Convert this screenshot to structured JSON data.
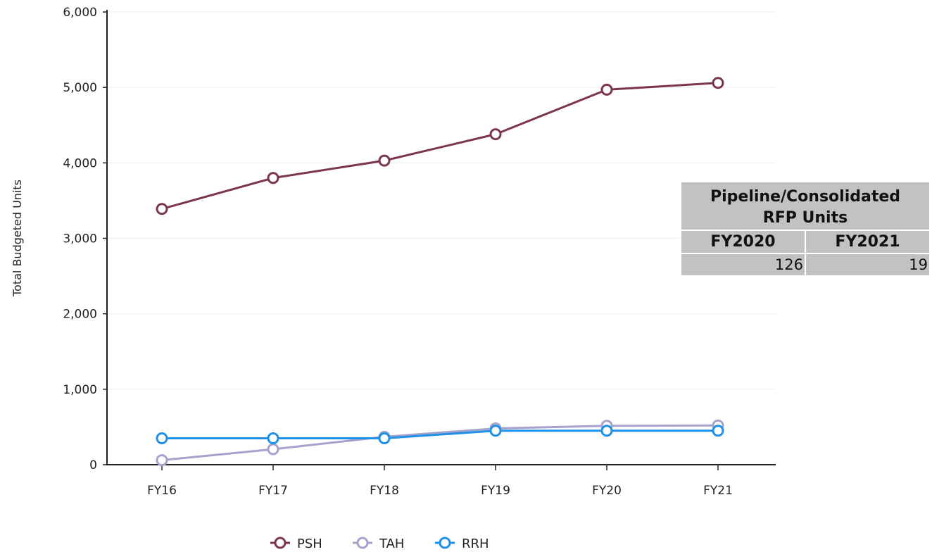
{
  "chart_data": {
    "type": "line",
    "categories": [
      "FY16",
      "FY17",
      "FY18",
      "FY19",
      "FY20",
      "FY21"
    ],
    "series": [
      {
        "name": "PSH",
        "color": "#7b3550",
        "values": [
          3390,
          3800,
          4030,
          4380,
          4970,
          5060
        ]
      },
      {
        "name": "TAH",
        "color": "#a3a3cc",
        "values": [
          60,
          205,
          370,
          480,
          515,
          520
        ]
      },
      {
        "name": "RRH",
        "color": "#1e90e8",
        "values": [
          350,
          350,
          350,
          450,
          450,
          450
        ]
      }
    ],
    "ylabel": "Total Budgeted Units",
    "xlabel": "",
    "ylim": [
      0,
      6000
    ],
    "yticks": [
      0,
      1000,
      2000,
      3000,
      4000,
      5000,
      6000
    ],
    "ytick_labels": [
      "0",
      "1,000",
      "2,000",
      "3,000",
      "4,000",
      "5,000",
      "6,000"
    ],
    "grid": true,
    "legend_position": "bottom-center"
  },
  "table": {
    "title_line1": "Pipeline/Consolidated",
    "title_line2": "RFP Units",
    "columns": [
      "FY2020",
      "FY2021"
    ],
    "values": [
      "126",
      "19"
    ]
  }
}
